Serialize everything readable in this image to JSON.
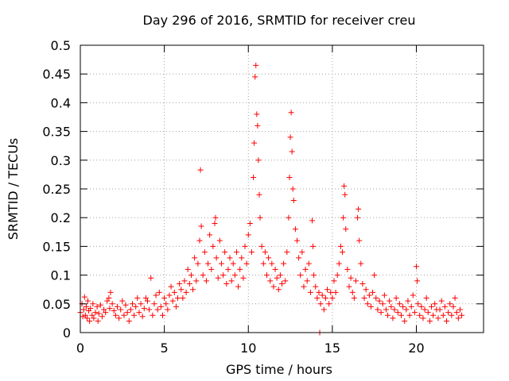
{
  "chart_data": {
    "type": "scatter",
    "title": "Day 296 of 2016, SRMTID for receiver creu",
    "xlabel": "GPS time / hours",
    "ylabel": "SRMTID / TECUs",
    "xlim": [
      0,
      24
    ],
    "ylim": [
      0,
      0.5
    ],
    "grid": true,
    "marker": "+",
    "colors": {
      "series": "#ff0000",
      "grid": "#a0a0a0",
      "axis": "#000000",
      "background": "#ffffff"
    },
    "x_ticks": [
      {
        "value": 0,
        "label": "0"
      },
      {
        "value": 5,
        "label": "5"
      },
      {
        "value": 10,
        "label": "10"
      },
      {
        "value": 15,
        "label": "15"
      },
      {
        "value": 20,
        "label": "20"
      }
    ],
    "y_ticks": [
      {
        "value": 0,
        "label": "0"
      },
      {
        "value": 0.05,
        "label": "0.05"
      },
      {
        "value": 0.1,
        "label": "0.1"
      },
      {
        "value": 0.15,
        "label": "0.15"
      },
      {
        "value": 0.2,
        "label": "0.2"
      },
      {
        "value": 0.25,
        "label": "0.25"
      },
      {
        "value": 0.3,
        "label": "0.3"
      },
      {
        "value": 0.35,
        "label": "0.35"
      },
      {
        "value": 0.4,
        "label": "0.4"
      },
      {
        "value": 0.45,
        "label": "0.45"
      },
      {
        "value": 0.5,
        "label": "0.5"
      }
    ],
    "series": [
      {
        "name": "SRMTID",
        "points": [
          [
            0.0,
            0.035
          ],
          [
            0.1,
            0.05
          ],
          [
            0.15,
            0.028
          ],
          [
            0.2,
            0.04
          ],
          [
            0.25,
            0.062
          ],
          [
            0.3,
            0.03
          ],
          [
            0.35,
            0.045
          ],
          [
            0.4,
            0.025
          ],
          [
            0.45,
            0.055
          ],
          [
            0.5,
            0.038
          ],
          [
            0.55,
            0.02
          ],
          [
            0.6,
            0.042
          ],
          [
            0.7,
            0.03
          ],
          [
            0.75,
            0.05
          ],
          [
            0.8,
            0.025
          ],
          [
            0.9,
            0.035
          ],
          [
            1.0,
            0.045
          ],
          [
            1.05,
            0.02
          ],
          [
            1.1,
            0.033
          ],
          [
            1.2,
            0.048
          ],
          [
            1.3,
            0.028
          ],
          [
            1.4,
            0.04
          ],
          [
            1.5,
            0.035
          ],
          [
            1.6,
            0.055
          ],
          [
            1.7,
            0.06
          ],
          [
            1.75,
            0.042
          ],
          [
            1.8,
            0.07
          ],
          [
            1.9,
            0.05
          ],
          [
            2.0,
            0.038
          ],
          [
            2.1,
            0.03
          ],
          [
            2.2,
            0.045
          ],
          [
            2.3,
            0.025
          ],
          [
            2.4,
            0.04
          ],
          [
            2.5,
            0.055
          ],
          [
            2.6,
            0.03
          ],
          [
            2.7,
            0.048
          ],
          [
            2.8,
            0.035
          ],
          [
            2.9,
            0.02
          ],
          [
            3.0,
            0.04
          ],
          [
            3.1,
            0.05
          ],
          [
            3.2,
            0.03
          ],
          [
            3.3,
            0.045
          ],
          [
            3.4,
            0.06
          ],
          [
            3.5,
            0.035
          ],
          [
            3.6,
            0.05
          ],
          [
            3.7,
            0.028
          ],
          [
            3.8,
            0.042
          ],
          [
            3.9,
            0.06
          ],
          [
            4.0,
            0.055
          ],
          [
            4.1,
            0.04
          ],
          [
            4.2,
            0.095
          ],
          [
            4.3,
            0.03
          ],
          [
            4.4,
            0.05
          ],
          [
            4.5,
            0.065
          ],
          [
            4.6,
            0.04
          ],
          [
            4.7,
            0.07
          ],
          [
            4.8,
            0.045
          ],
          [
            4.9,
            0.03
          ],
          [
            5.0,
            0.06
          ],
          [
            5.1,
            0.05
          ],
          [
            5.2,
            0.04
          ],
          [
            5.3,
            0.065
          ],
          [
            5.4,
            0.08
          ],
          [
            5.5,
            0.055
          ],
          [
            5.6,
            0.07
          ],
          [
            5.7,
            0.045
          ],
          [
            5.8,
            0.06
          ],
          [
            5.9,
            0.085
          ],
          [
            6.0,
            0.075
          ],
          [
            6.1,
            0.06
          ],
          [
            6.2,
            0.09
          ],
          [
            6.3,
            0.07
          ],
          [
            6.4,
            0.11
          ],
          [
            6.5,
            0.085
          ],
          [
            6.6,
            0.1
          ],
          [
            6.7,
            0.075
          ],
          [
            6.8,
            0.13
          ],
          [
            6.9,
            0.09
          ],
          [
            7.0,
            0.12
          ],
          [
            7.1,
            0.16
          ],
          [
            7.15,
            0.283
          ],
          [
            7.2,
            0.185
          ],
          [
            7.3,
            0.1
          ],
          [
            7.4,
            0.14
          ],
          [
            7.5,
            0.09
          ],
          [
            7.6,
            0.12
          ],
          [
            7.7,
            0.17
          ],
          [
            7.8,
            0.11
          ],
          [
            7.9,
            0.15
          ],
          [
            8.0,
            0.19
          ],
          [
            8.05,
            0.2
          ],
          [
            8.1,
            0.13
          ],
          [
            8.2,
            0.095
          ],
          [
            8.3,
            0.16
          ],
          [
            8.4,
            0.12
          ],
          [
            8.5,
            0.1
          ],
          [
            8.6,
            0.14
          ],
          [
            8.7,
            0.085
          ],
          [
            8.8,
            0.11
          ],
          [
            8.9,
            0.13
          ],
          [
            9.0,
            0.09
          ],
          [
            9.1,
            0.12
          ],
          [
            9.2,
            0.1
          ],
          [
            9.3,
            0.14
          ],
          [
            9.4,
            0.08
          ],
          [
            9.5,
            0.11
          ],
          [
            9.6,
            0.13
          ],
          [
            9.7,
            0.095
          ],
          [
            9.8,
            0.15
          ],
          [
            9.9,
            0.12
          ],
          [
            10.0,
            0.17
          ],
          [
            10.1,
            0.19
          ],
          [
            10.2,
            0.14
          ],
          [
            10.3,
            0.27
          ],
          [
            10.35,
            0.33
          ],
          [
            10.4,
            0.445
          ],
          [
            10.45,
            0.465
          ],
          [
            10.5,
            0.38
          ],
          [
            10.55,
            0.36
          ],
          [
            10.6,
            0.3
          ],
          [
            10.65,
            0.24
          ],
          [
            10.7,
            0.2
          ],
          [
            10.8,
            0.15
          ],
          [
            10.9,
            0.12
          ],
          [
            11.0,
            0.14
          ],
          [
            11.1,
            0.1
          ],
          [
            11.2,
            0.13
          ],
          [
            11.3,
            0.09
          ],
          [
            11.4,
            0.12
          ],
          [
            11.5,
            0.08
          ],
          [
            11.6,
            0.11
          ],
          [
            11.7,
            0.095
          ],
          [
            11.8,
            0.075
          ],
          [
            11.9,
            0.1
          ],
          [
            12.0,
            0.085
          ],
          [
            12.1,
            0.12
          ],
          [
            12.2,
            0.09
          ],
          [
            12.3,
            0.14
          ],
          [
            12.4,
            0.2
          ],
          [
            12.45,
            0.27
          ],
          [
            12.5,
            0.34
          ],
          [
            12.55,
            0.383
          ],
          [
            12.6,
            0.315
          ],
          [
            12.65,
            0.25
          ],
          [
            12.7,
            0.23
          ],
          [
            12.8,
            0.18
          ],
          [
            12.9,
            0.16
          ],
          [
            13.0,
            0.13
          ],
          [
            13.1,
            0.1
          ],
          [
            13.2,
            0.14
          ],
          [
            13.3,
            0.08
          ],
          [
            13.4,
            0.11
          ],
          [
            13.5,
            0.09
          ],
          [
            13.6,
            0.12
          ],
          [
            13.7,
            0.07
          ],
          [
            13.8,
            0.195
          ],
          [
            13.85,
            0.15
          ],
          [
            13.9,
            0.1
          ],
          [
            14.0,
            0.08
          ],
          [
            14.1,
            0.06
          ],
          [
            14.2,
            0.07
          ],
          [
            14.25,
            0.0
          ],
          [
            14.3,
            0.05
          ],
          [
            14.4,
            0.065
          ],
          [
            14.5,
            0.04
          ],
          [
            14.6,
            0.06
          ],
          [
            14.7,
            0.075
          ],
          [
            14.8,
            0.05
          ],
          [
            14.9,
            0.07
          ],
          [
            15.0,
            0.06
          ],
          [
            15.1,
            0.09
          ],
          [
            15.2,
            0.07
          ],
          [
            15.3,
            0.1
          ],
          [
            15.4,
            0.12
          ],
          [
            15.5,
            0.15
          ],
          [
            15.6,
            0.14
          ],
          [
            15.65,
            0.2
          ],
          [
            15.7,
            0.255
          ],
          [
            15.75,
            0.24
          ],
          [
            15.8,
            0.18
          ],
          [
            15.9,
            0.11
          ],
          [
            16.0,
            0.08
          ],
          [
            16.1,
            0.095
          ],
          [
            16.2,
            0.07
          ],
          [
            16.3,
            0.06
          ],
          [
            16.4,
            0.09
          ],
          [
            16.5,
            0.2
          ],
          [
            16.55,
            0.215
          ],
          [
            16.6,
            0.16
          ],
          [
            16.7,
            0.12
          ],
          [
            16.8,
            0.085
          ],
          [
            16.9,
            0.06
          ],
          [
            17.0,
            0.075
          ],
          [
            17.1,
            0.05
          ],
          [
            17.2,
            0.065
          ],
          [
            17.3,
            0.045
          ],
          [
            17.4,
            0.07
          ],
          [
            17.5,
            0.1
          ],
          [
            17.6,
            0.06
          ],
          [
            17.7,
            0.04
          ],
          [
            17.8,
            0.055
          ],
          [
            17.9,
            0.035
          ],
          [
            18.0,
            0.05
          ],
          [
            18.1,
            0.065
          ],
          [
            18.2,
            0.04
          ],
          [
            18.3,
            0.03
          ],
          [
            18.4,
            0.055
          ],
          [
            18.5,
            0.045
          ],
          [
            18.6,
            0.025
          ],
          [
            18.7,
            0.04
          ],
          [
            18.8,
            0.06
          ],
          [
            18.9,
            0.035
          ],
          [
            19.0,
            0.05
          ],
          [
            19.1,
            0.03
          ],
          [
            19.2,
            0.045
          ],
          [
            19.3,
            0.02
          ],
          [
            19.4,
            0.04
          ],
          [
            19.5,
            0.055
          ],
          [
            19.6,
            0.03
          ],
          [
            19.7,
            0.045
          ],
          [
            19.8,
            0.065
          ],
          [
            19.9,
            0.035
          ],
          [
            20.0,
            0.115
          ],
          [
            20.05,
            0.09
          ],
          [
            20.1,
            0.05
          ],
          [
            20.2,
            0.03
          ],
          [
            20.3,
            0.045
          ],
          [
            20.4,
            0.025
          ],
          [
            20.5,
            0.04
          ],
          [
            20.6,
            0.06
          ],
          [
            20.7,
            0.035
          ],
          [
            20.8,
            0.02
          ],
          [
            20.9,
            0.045
          ],
          [
            21.0,
            0.03
          ],
          [
            21.1,
            0.05
          ],
          [
            21.2,
            0.04
          ],
          [
            21.3,
            0.025
          ],
          [
            21.4,
            0.04
          ],
          [
            21.5,
            0.055
          ],
          [
            21.6,
            0.03
          ],
          [
            21.7,
            0.045
          ],
          [
            21.8,
            0.02
          ],
          [
            21.9,
            0.035
          ],
          [
            22.0,
            0.05
          ],
          [
            22.1,
            0.03
          ],
          [
            22.2,
            0.045
          ],
          [
            22.3,
            0.06
          ],
          [
            22.4,
            0.035
          ],
          [
            22.5,
            0.025
          ],
          [
            22.6,
            0.04
          ],
          [
            22.7,
            0.03
          ]
        ]
      }
    ]
  }
}
